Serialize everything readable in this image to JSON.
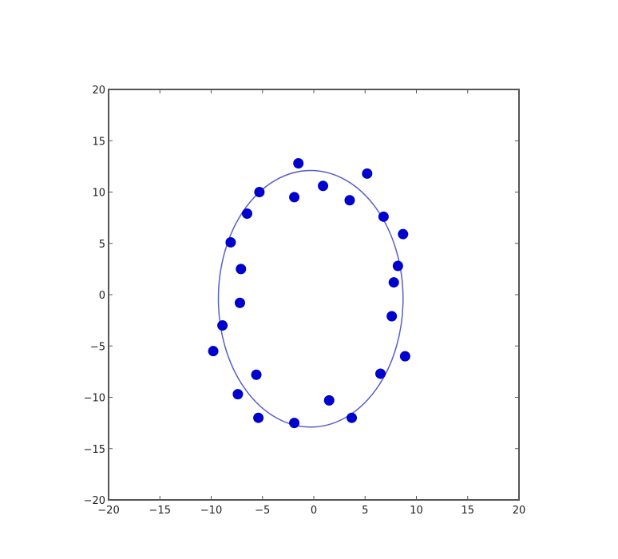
{
  "chart_data": {
    "type": "scatter",
    "title": "",
    "xlabel": "",
    "ylabel": "",
    "xlim": [
      -20,
      20
    ],
    "ylim": [
      -20,
      20
    ],
    "xticks": [
      -20,
      -15,
      -10,
      -5,
      0,
      5,
      10,
      15,
      20
    ],
    "yticks": [
      -20,
      -15,
      -10,
      -5,
      0,
      5,
      10,
      15,
      20
    ],
    "xtick_labels": [
      "−20",
      "−15",
      "−10",
      "−5",
      "0",
      "5",
      "10",
      "15",
      "20"
    ],
    "ytick_labels": [
      "−20",
      "−15",
      "−10",
      "−5",
      "0",
      "5",
      "10",
      "15",
      "20"
    ],
    "grid": false,
    "colors": {
      "points": "#0000cc",
      "ellipse": "#5a5fc8",
      "axes": "#555555"
    },
    "points": {
      "x": [
        -1.5,
        5.2,
        -5.3,
        0.9,
        -1.9,
        3.5,
        -6.5,
        6.8,
        -8.1,
        8.7,
        -7.1,
        8.2,
        7.8,
        -7.2,
        7.6,
        -8.9,
        -9.8,
        8.9,
        -5.6,
        6.5,
        -7.4,
        1.5,
        -5.4,
        3.7,
        -1.9
      ],
      "y": [
        12.8,
        11.8,
        10.0,
        10.6,
        9.5,
        9.2,
        7.9,
        7.6,
        5.1,
        5.9,
        2.5,
        2.8,
        1.2,
        -0.8,
        -2.1,
        -3.0,
        -5.5,
        -6.0,
        -7.8,
        -7.7,
        -9.7,
        -10.3,
        -12.0,
        -12.0,
        -12.5
      ]
    },
    "ellipse": {
      "cx": -0.3,
      "cy": -0.4,
      "rx": 9.0,
      "ry": 12.5,
      "rotation_deg": 0
    }
  }
}
